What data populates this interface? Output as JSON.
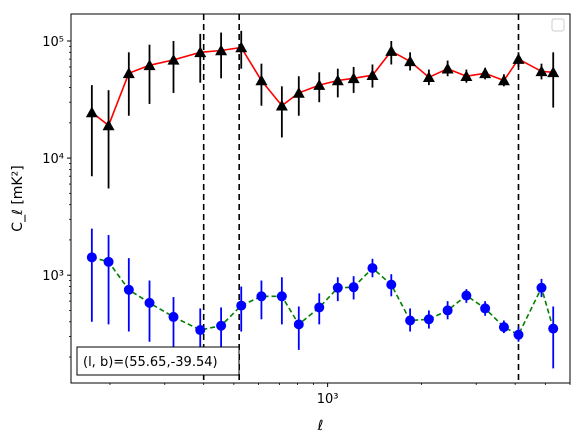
{
  "chart_data": {
    "type": "scatter",
    "xscale": "log",
    "yscale": "log",
    "xlim": [
      150,
      6000
    ],
    "ylim": [
      120,
      170000
    ],
    "xlabel": "ℓ",
    "ylabel": "C_ℓ  [mK²]",
    "x_tick_labels": [
      {
        "value": 1000,
        "label": "10³"
      }
    ],
    "y_tick_labels": [
      {
        "value": 1000,
        "label": "10³"
      },
      {
        "value": 10000,
        "label": "10⁴"
      },
      {
        "value": 100000,
        "label": "10⁵"
      }
    ],
    "annotation": "(l, b)=(55.65,-39.54)",
    "vlines": [
      400,
      520,
      4100
    ],
    "grid": false,
    "legend": "empty box top-right",
    "series": [
      {
        "color": "#000000",
        "line_color": "#ff0000",
        "line_style": "solid",
        "marker": "triangle",
        "points": [
          {
            "x": 175,
            "y": 24500,
            "lo": 7000,
            "hi": 42000
          },
          {
            "x": 198,
            "y": 19000,
            "lo": 5500,
            "hi": 38000
          },
          {
            "x": 230,
            "y": 53000,
            "lo": 23000,
            "hi": 80000
          },
          {
            "x": 268,
            "y": 62000,
            "lo": 29000,
            "hi": 93000
          },
          {
            "x": 320,
            "y": 69000,
            "lo": 36000,
            "hi": 100000
          },
          {
            "x": 390,
            "y": 80000,
            "lo": 44000,
            "hi": 115000
          },
          {
            "x": 455,
            "y": 83000,
            "lo": 48000,
            "hi": 118000
          },
          {
            "x": 528,
            "y": 88000,
            "lo": 58000,
            "hi": 122000
          },
          {
            "x": 613,
            "y": 46000,
            "lo": 28000,
            "hi": 64000
          },
          {
            "x": 713,
            "y": 28000,
            "lo": 15000,
            "hi": 41000
          },
          {
            "x": 808,
            "y": 36000,
            "lo": 23000,
            "hi": 50000
          },
          {
            "x": 940,
            "y": 42000,
            "lo": 30000,
            "hi": 54000
          },
          {
            "x": 1078,
            "y": 46000,
            "lo": 33000,
            "hi": 58000
          },
          {
            "x": 1212,
            "y": 48000,
            "lo": 36000,
            "hi": 60000
          },
          {
            "x": 1393,
            "y": 51000,
            "lo": 40000,
            "hi": 63000
          },
          {
            "x": 1601,
            "y": 82000,
            "lo": 63000,
            "hi": 100000
          },
          {
            "x": 1840,
            "y": 67000,
            "lo": 56000,
            "hi": 80000
          },
          {
            "x": 2114,
            "y": 49000,
            "lo": 42000,
            "hi": 57000
          },
          {
            "x": 2428,
            "y": 58000,
            "lo": 50000,
            "hi": 68000
          },
          {
            "x": 2789,
            "y": 50000,
            "lo": 44000,
            "hi": 57000
          },
          {
            "x": 3204,
            "y": 53000,
            "lo": 47000,
            "hi": 59000
          },
          {
            "x": 3681,
            "y": 46000,
            "lo": 41000,
            "hi": 52000
          },
          {
            "x": 4100,
            "y": 70000,
            "lo": 60000,
            "hi": 80000
          },
          {
            "x": 4860,
            "y": 55000,
            "lo": 47000,
            "hi": 64000
          },
          {
            "x": 5300,
            "y": 54000,
            "lo": 27000,
            "hi": 80000
          }
        ]
      },
      {
        "color": "#0000ff",
        "line_color": "#008000",
        "line_style": "dashed",
        "marker": "circle",
        "points": [
          {
            "x": 175,
            "y": 1420,
            "lo": 400,
            "hi": 2500
          },
          {
            "x": 198,
            "y": 1300,
            "lo": 380,
            "hi": 2200
          },
          {
            "x": 230,
            "y": 750,
            "lo": 330,
            "hi": 1400
          },
          {
            "x": 268,
            "y": 580,
            "lo": 270,
            "hi": 900
          },
          {
            "x": 320,
            "y": 440,
            "lo": 220,
            "hi": 650
          },
          {
            "x": 390,
            "y": 340,
            "lo": 150,
            "hi": 520
          },
          {
            "x": 455,
            "y": 370,
            "lo": 220,
            "hi": 530
          },
          {
            "x": 528,
            "y": 550,
            "lo": 330,
            "hi": 800
          },
          {
            "x": 613,
            "y": 660,
            "lo": 420,
            "hi": 900
          },
          {
            "x": 713,
            "y": 660,
            "lo": 380,
            "hi": 960
          },
          {
            "x": 808,
            "y": 380,
            "lo": 230,
            "hi": 540
          },
          {
            "x": 940,
            "y": 530,
            "lo": 380,
            "hi": 700
          },
          {
            "x": 1078,
            "y": 780,
            "lo": 600,
            "hi": 960
          },
          {
            "x": 1212,
            "y": 790,
            "lo": 620,
            "hi": 980
          },
          {
            "x": 1393,
            "y": 1150,
            "lo": 960,
            "hi": 1380
          },
          {
            "x": 1601,
            "y": 830,
            "lo": 660,
            "hi": 1020
          },
          {
            "x": 1840,
            "y": 410,
            "lo": 330,
            "hi": 520
          },
          {
            "x": 2114,
            "y": 420,
            "lo": 350,
            "hi": 500
          },
          {
            "x": 2428,
            "y": 500,
            "lo": 420,
            "hi": 600
          },
          {
            "x": 2789,
            "y": 670,
            "lo": 580,
            "hi": 760
          },
          {
            "x": 3204,
            "y": 520,
            "lo": 450,
            "hi": 600
          },
          {
            "x": 3681,
            "y": 360,
            "lo": 320,
            "hi": 410
          },
          {
            "x": 4100,
            "y": 310,
            "lo": 270,
            "hi": 360
          },
          {
            "x": 4860,
            "y": 780,
            "lo": 650,
            "hi": 930
          },
          {
            "x": 5300,
            "y": 350,
            "lo": 160,
            "hi": 540
          }
        ]
      }
    ]
  }
}
